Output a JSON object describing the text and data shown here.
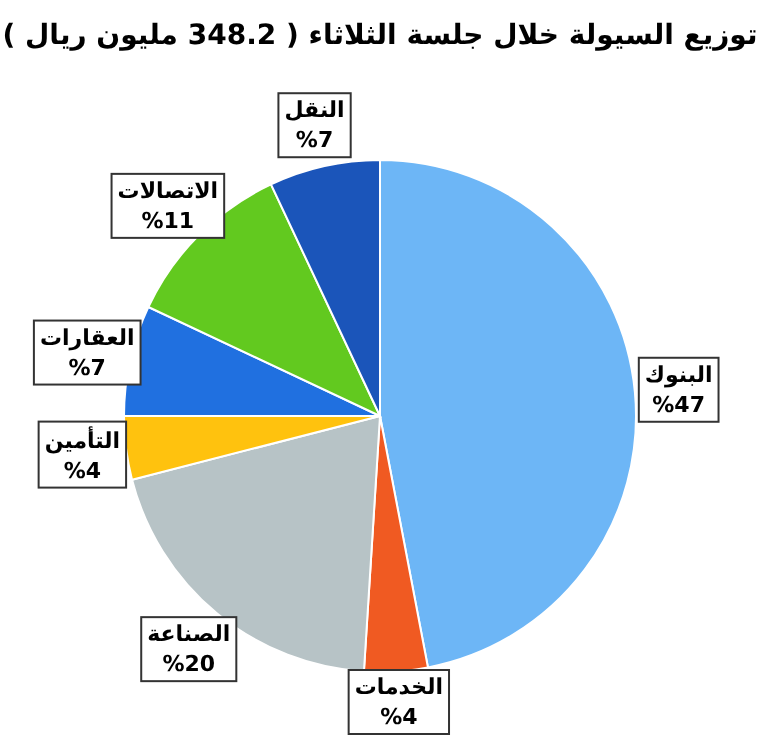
{
  "chart_data": {
    "type": "pie",
    "title": "توزيع السيولة خلال جلسة الثلاثاء ( 348.2 مليون ريال )",
    "categories": [
      "البنوك",
      "الخدمات",
      "الصناعة",
      "التأمين",
      "العقارات",
      "الاتصالات",
      "النقل"
    ],
    "values": [
      47,
      4,
      20,
      4,
      7,
      11,
      7
    ],
    "colors": [
      "#6db6f6",
      "#f05a22",
      "#b7c3c6",
      "#ffc20e",
      "#2070e0",
      "#62c91f",
      "#1b55ba"
    ],
    "value_labels": [
      "%47",
      "%4",
      "%20",
      "%4",
      "%7",
      "%11",
      "%7"
    ]
  }
}
